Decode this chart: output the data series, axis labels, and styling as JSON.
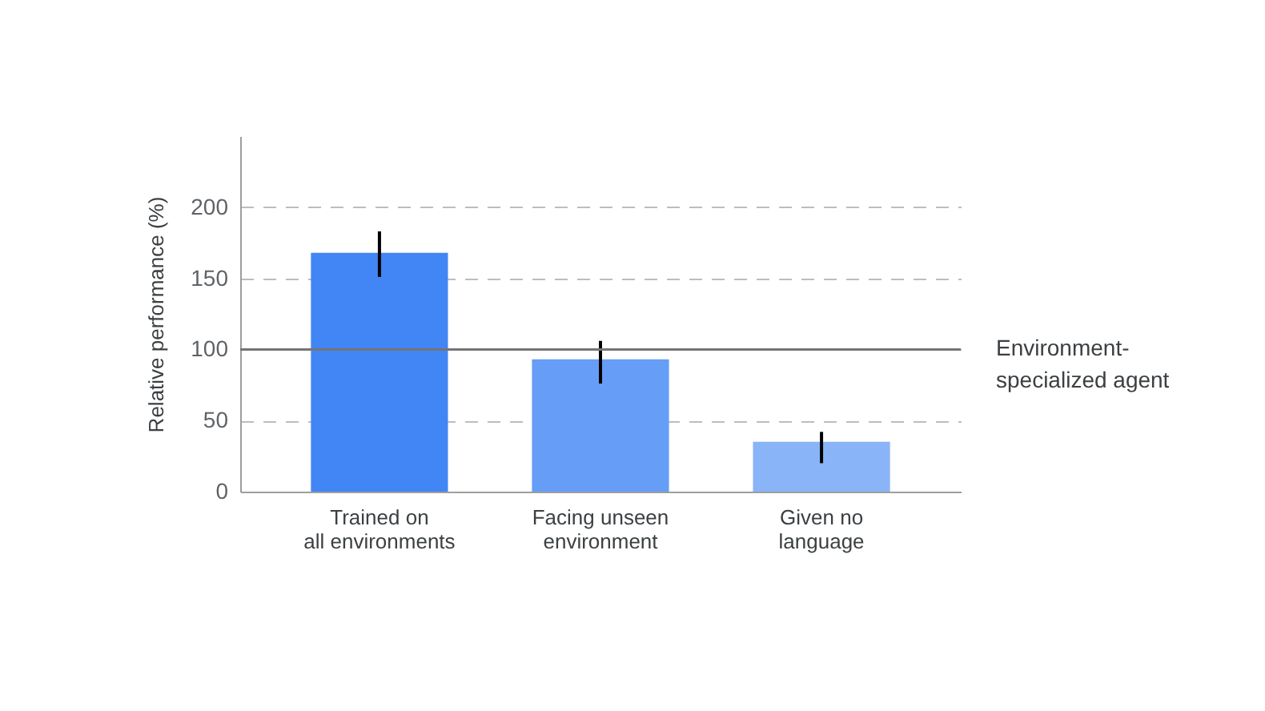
{
  "chart_data": {
    "type": "bar",
    "ylabel": "Relative performance (%)",
    "categories": [
      "Trained on\nall environments",
      "Facing unseen\nenvironment",
      "Given no\nlanguage"
    ],
    "values": [
      168,
      93,
      35
    ],
    "colors": [
      "#4285f4",
      "#669df6",
      "#8ab4f8"
    ],
    "errors": [
      [
        151,
        183
      ],
      [
        76,
        106
      ],
      [
        20,
        42
      ]
    ],
    "ylim": [
      0,
      250
    ],
    "yticks": [
      0,
      50,
      100,
      150,
      200
    ],
    "grid": "y",
    "ref_lines": [
      {
        "axis": "y",
        "value": 100,
        "label": "Environment-\nspecialized agent",
        "color": "#757575",
        "line_style": "solid"
      }
    ]
  }
}
